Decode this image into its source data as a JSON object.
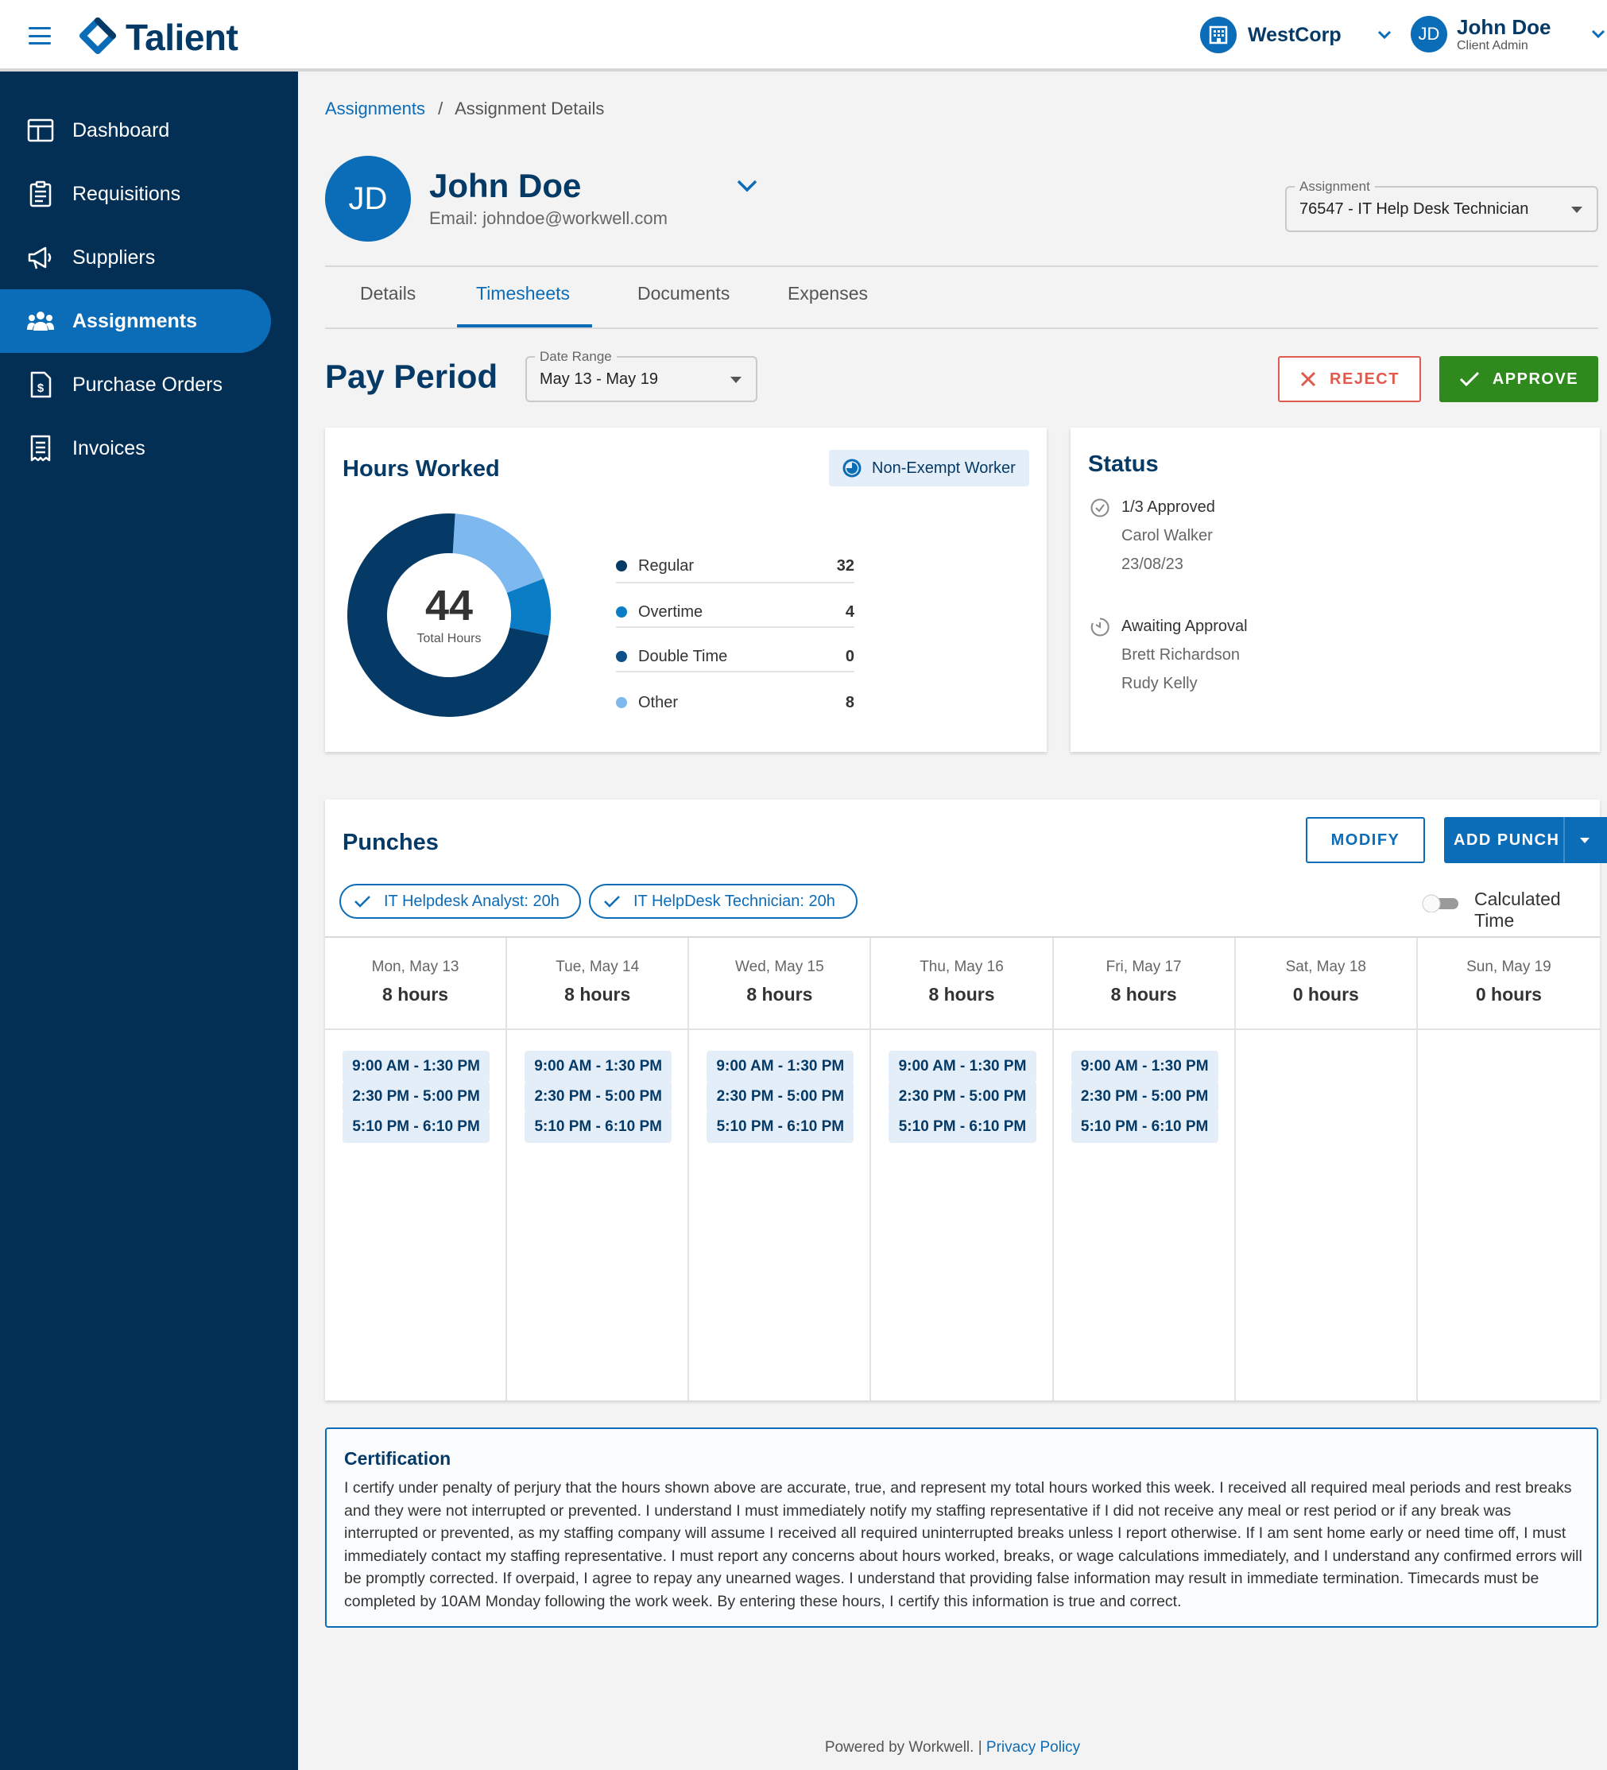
{
  "app": {
    "brand": "Talient",
    "org": "WestCorp",
    "user": {
      "initials": "JD",
      "name": "John Doe",
      "role": "Client Admin"
    }
  },
  "sidebar": {
    "items": [
      {
        "label": "Dashboard",
        "icon": "dashboard-icon"
      },
      {
        "label": "Requisitions",
        "icon": "clipboard-icon"
      },
      {
        "label": "Suppliers",
        "icon": "megaphone-icon"
      },
      {
        "label": "Assignments",
        "icon": "people-icon",
        "active": true
      },
      {
        "label": "Purchase Orders",
        "icon": "dollar-document-icon"
      },
      {
        "label": "Invoices",
        "icon": "receipt-icon"
      }
    ]
  },
  "breadcrumb": {
    "link": "Assignments",
    "sep": "/",
    "current": "Assignment Details"
  },
  "worker": {
    "initials": "JD",
    "name": "John Doe",
    "email": "Email: johndoe@workwell.com"
  },
  "assignment_select": {
    "label": "Assignment",
    "value": "76547 - IT Help Desk Technician"
  },
  "tabs": [
    {
      "label": "Details"
    },
    {
      "label": "Timesheets",
      "active": true
    },
    {
      "label": "Documents"
    },
    {
      "label": "Expenses"
    }
  ],
  "pay_period": {
    "title": "Pay Period",
    "date_range_label": "Date Range",
    "date_range_value": "May 13 - May 19",
    "reject_label": "REJECT",
    "approve_label": "APPROVE"
  },
  "hours": {
    "title": "Hours Worked",
    "badge": "Non-Exempt Worker",
    "total": "44",
    "total_label": "Total Hours",
    "legend": [
      {
        "label": "Regular",
        "value": "32",
        "color": "#063a66"
      },
      {
        "label": "Overtime",
        "value": "4",
        "color": "#0b7cc6"
      },
      {
        "label": "Double Time",
        "value": "0",
        "color": "#0d4f86"
      },
      {
        "label": "Other",
        "value": "8",
        "color": "#7db9ef"
      }
    ]
  },
  "status": {
    "title": "Status",
    "approved": {
      "label": "1/3 Approved",
      "name": "Carol Walker",
      "date": "23/08/23"
    },
    "awaiting": {
      "label": "Awaiting Approval",
      "names": [
        "Brett Richardson",
        "Rudy Kelly"
      ]
    }
  },
  "punches": {
    "title": "Punches",
    "modify_label": "MODIFY",
    "add_label": "ADD PUNCH",
    "filters": [
      "IT Helpdesk Analyst: 20h",
      "IT HelpDesk Technician: 20h"
    ],
    "toggle_label": "Calculated Time",
    "days": [
      {
        "date": "Mon, May 13",
        "hours": "8 hours",
        "punches": [
          "9:00 AM - 1:30 PM",
          "2:30 PM - 5:00 PM",
          "5:10 PM - 6:10 PM"
        ]
      },
      {
        "date": "Tue, May 14",
        "hours": "8 hours",
        "punches": [
          "9:00 AM - 1:30 PM",
          "2:30 PM - 5:00 PM",
          "5:10 PM - 6:10 PM"
        ]
      },
      {
        "date": "Wed, May 15",
        "hours": "8 hours",
        "punches": [
          "9:00 AM - 1:30 PM",
          "2:30 PM - 5:00 PM",
          "5:10 PM - 6:10 PM"
        ]
      },
      {
        "date": "Thu, May 16",
        "hours": "8 hours",
        "punches": [
          "9:00 AM - 1:30 PM",
          "2:30 PM - 5:00 PM",
          "5:10 PM - 6:10 PM"
        ]
      },
      {
        "date": "Fri, May 17",
        "hours": "8 hours",
        "punches": [
          "9:00 AM - 1:30 PM",
          "2:30 PM - 5:00 PM",
          "5:10 PM - 6:10 PM"
        ]
      },
      {
        "date": "Sat, May 18",
        "hours": "0 hours",
        "punches": []
      },
      {
        "date": "Sun, May 19",
        "hours": "0 hours",
        "punches": []
      }
    ]
  },
  "certification": {
    "title": "Certification",
    "body": "I certify under penalty of perjury that the hours shown above are accurate, true, and represent my total hours worked this week. I received all required meal periods and rest breaks and they were not interrupted or prevented. I understand I must immediately notify my staffing representative if I did not receive any meal or rest period or if any break was interrupted or prevented, as my staffing company will assume I received all required uninterrupted breaks unless I report otherwise. If I am sent home early or need time off, I must immediately contact my staffing representative. I must report any concerns about hours worked, breaks, or wage calculations immediately, and I understand any confirmed errors will be promptly corrected. If overpaid, I agree to repay any unearned wages. I understand that providing false information may result in immediate termination. Timecards must be completed by 10AM Monday following the work week. By entering these hours, I certify this information is true and correct."
  },
  "footer": {
    "text": "Powered by Workwell. |",
    "link": "Privacy Policy"
  }
}
